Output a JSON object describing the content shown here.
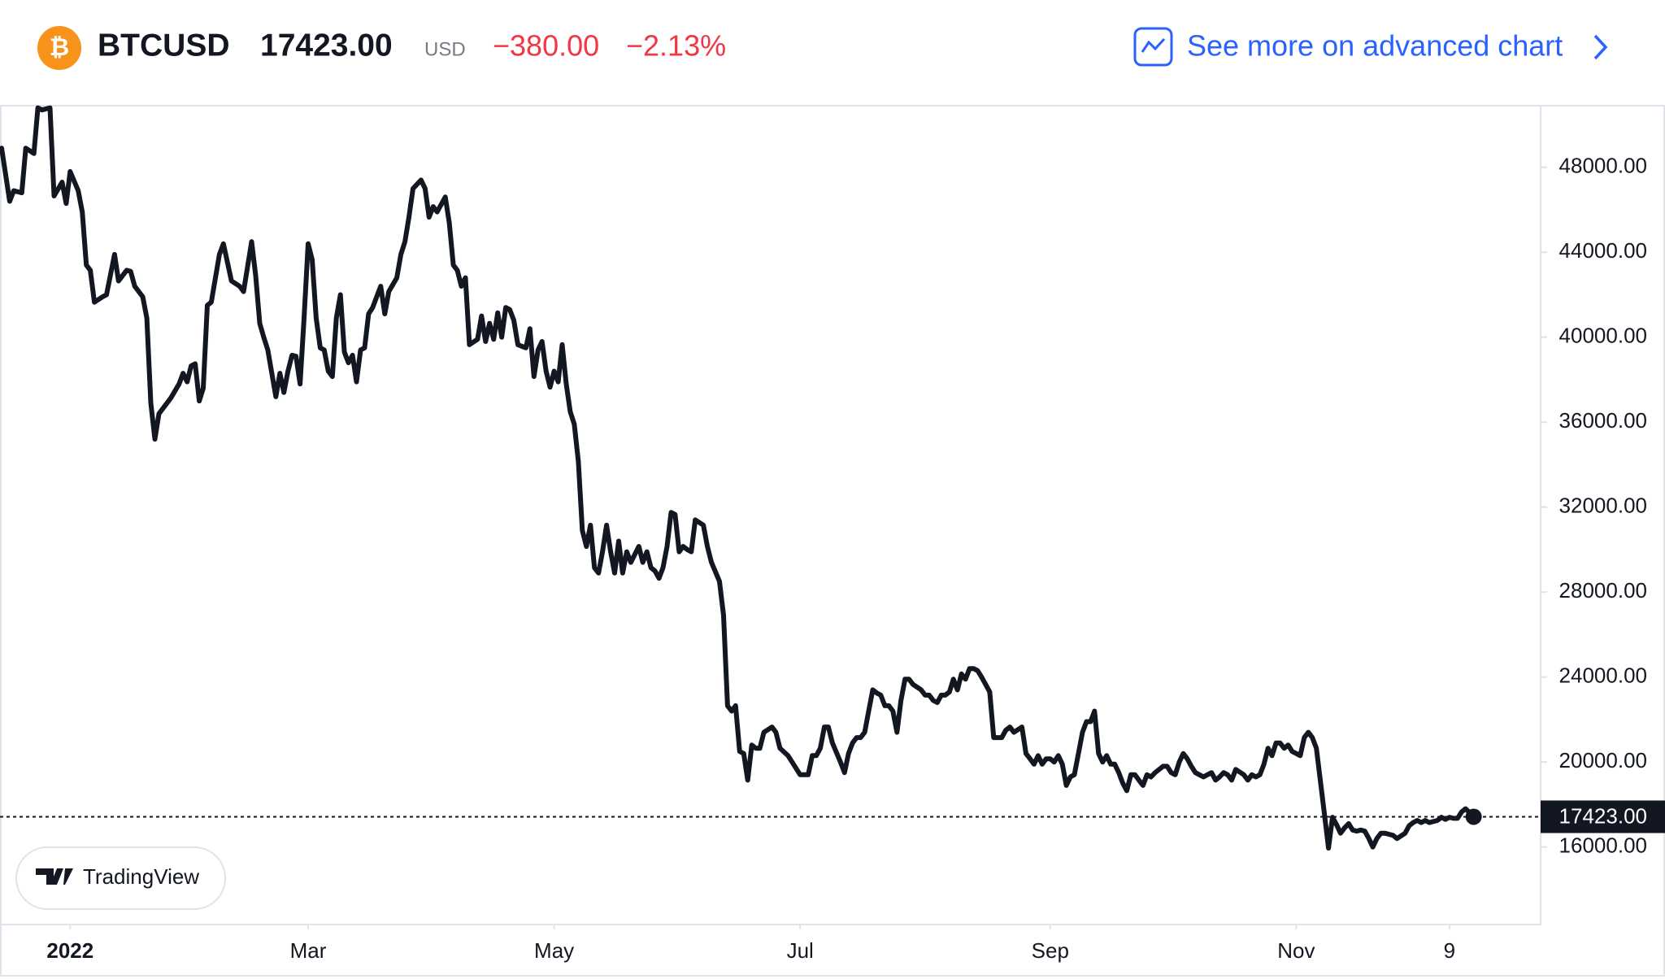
{
  "header": {
    "symbol": "BTCUSD",
    "price": "17423.00",
    "currency": "USD",
    "change": "−380.00",
    "change_percent": "−2.13%",
    "link": "See more on advanced chart",
    "watermark": "TradingView"
  },
  "chart_data": {
    "type": "line",
    "color": "#131722",
    "x": [
      -17,
      -15,
      -14,
      -12,
      -11,
      -9,
      -8,
      -7,
      -5,
      -4,
      -2,
      -1,
      0,
      2,
      3,
      4,
      5,
      6,
      8,
      9,
      11,
      12,
      14,
      15,
      16,
      18,
      19,
      20,
      21,
      22,
      24,
      25,
      27,
      28,
      29,
      30,
      31,
      32,
      33,
      34,
      35,
      37,
      38,
      40,
      42,
      43,
      45,
      46,
      47,
      48,
      49,
      51,
      52,
      53,
      54,
      55,
      56,
      57,
      58,
      59,
      60,
      61,
      62,
      63,
      64,
      65,
      66,
      67,
      68,
      69,
      70,
      71,
      72,
      73,
      74,
      75,
      76,
      77,
      78,
      79,
      81,
      82,
      83,
      84,
      85,
      87,
      88,
      89,
      90,
      91,
      93,
      94,
      95,
      96,
      97,
      98,
      99,
      101,
      102,
      103,
      104,
      105,
      106,
      107,
      108,
      109,
      110,
      111,
      113,
      114,
      115,
      116,
      117,
      118,
      119,
      120,
      121,
      122,
      123,
      124,
      125,
      126,
      127,
      128,
      129,
      130,
      131,
      132,
      133,
      134,
      135,
      136,
      137,
      138,
      139,
      141,
      142,
      143,
      144,
      145,
      146,
      147,
      148,
      149,
      150,
      151,
      152,
      153,
      154,
      155,
      157,
      158,
      159,
      161,
      162,
      163,
      164,
      165,
      166,
      167,
      168,
      169,
      170,
      171,
      172,
      174,
      175,
      176,
      178,
      179,
      181,
      182,
      183,
      184,
      185,
      186,
      187,
      188,
      189,
      191,
      192,
      193,
      194,
      195,
      196,
      197,
      198,
      199,
      200,
      201,
      202,
      203,
      204,
      205,
      206,
      207,
      208,
      209,
      211,
      212,
      213,
      214,
      215,
      216,
      217,
      218,
      219,
      220,
      221,
      222,
      223,
      224,
      225,
      226,
      227,
      228,
      229,
      231,
      232,
      233,
      234,
      236,
      237,
      238,
      239,
      240,
      241,
      242,
      243,
      244,
      245,
      246,
      247,
      248,
      249,
      251,
      252,
      253,
      254,
      255,
      256,
      257,
      258,
      259,
      260,
      261,
      262,
      263,
      264,
      265,
      266,
      267,
      268,
      269,
      271,
      272,
      273,
      274,
      275,
      276,
      277,
      278,
      279,
      280,
      281,
      282,
      283,
      284,
      285,
      286,
      287,
      288,
      289,
      291,
      292,
      293,
      294,
      295,
      296,
      297,
      298,
      299,
      300,
      301,
      302,
      303,
      304,
      305,
      306,
      307,
      308,
      309,
      311,
      312,
      313,
      314,
      315,
      316,
      317,
      318,
      319,
      320,
      321,
      322,
      323,
      324,
      325,
      326,
      327,
      328,
      329,
      331,
      332,
      333,
      334,
      335,
      336,
      337,
      338,
      339,
      340,
      341,
      342,
      343,
      344,
      345,
      346,
      348
    ],
    "values": [
      48900,
      46400,
      46900,
      46800,
      48900,
      48650,
      50800,
      50700,
      50800,
      46650,
      47300,
      46300,
      47800,
      46900,
      45900,
      43400,
      43150,
      41650,
      41900,
      42000,
      43900,
      42650,
      43150,
      43100,
      42400,
      41900,
      40900,
      36900,
      35200,
      36400,
      36900,
      37150,
      37800,
      38300,
      37900,
      38650,
      38750,
      37000,
      37600,
      41500,
      41650,
      43900,
      44400,
      42650,
      42400,
      42150,
      44500,
      42900,
      40650,
      40000,
      39400,
      37200,
      38300,
      37400,
      38400,
      39150,
      39100,
      37800,
      40900,
      44400,
      43650,
      40900,
      39500,
      39400,
      38400,
      38150,
      40900,
      42000,
      39300,
      38800,
      39150,
      37900,
      39400,
      39500,
      41100,
      41400,
      41900,
      42400,
      41100,
      42150,
      42800,
      43900,
      44500,
      45650,
      47000,
      47400,
      47000,
      45650,
      46150,
      45900,
      46600,
      45400,
      43400,
      43150,
      42400,
      42800,
      39650,
      39900,
      41000,
      39800,
      40650,
      39900,
      41150,
      40000,
      41400,
      41300,
      40800,
      39650,
      39500,
      40400,
      38150,
      39400,
      39800,
      38400,
      37650,
      38400,
      37900,
      39650,
      37800,
      36500,
      35900,
      34150,
      30900,
      30150,
      31150,
      29150,
      28900,
      29900,
      31150,
      29900,
      28900,
      30400,
      28900,
      29900,
      29400,
      30150,
      29400,
      29900,
      29150,
      29000,
      28650,
      29150,
      30150,
      31750,
      31650,
      29900,
      30150,
      30000,
      29900,
      31400,
      31150,
      30150,
      29400,
      28500,
      26900,
      22650,
      22400,
      22650,
      20500,
      20400,
      19150,
      20800,
      20650,
      20650,
      21400,
      21650,
      21400,
      20650,
      20300,
      20000,
      19400,
      19400,
      19400,
      20300,
      20300,
      20650,
      21650,
      21650,
      20900,
      20000,
      19500,
      20400,
      20900,
      21150,
      21150,
      21400,
      22400,
      23400,
      23250,
      23150,
      22650,
      22650,
      22400,
      21400,
      22900,
      23900,
      23900,
      23650,
      23400,
      23150,
      23150,
      22900,
      22800,
      23150,
      23150,
      23300,
      23900,
      23400,
      24150,
      23900,
      24400,
      24400,
      24300,
      24000,
      23650,
      23300,
      21150,
      21150,
      21500,
      21650,
      21400,
      21650,
      20400,
      20150,
      19900,
      20300,
      19900,
      20150,
      20150,
      20000,
      20300,
      19900,
      18900,
      19300,
      19400,
      21400,
      21900,
      21900,
      22400,
      20400,
      20000,
      20300,
      19900,
      19900,
      19500,
      19000,
      18650,
      19400,
      19400,
      19150,
      18900,
      19400,
      19300,
      19500,
      19800,
      19800,
      19500,
      19400,
      20000,
      20400,
      20150,
      19800,
      19500,
      19400,
      19300,
      19400,
      19500,
      19150,
      19300,
      19500,
      19400,
      19150,
      19650,
      19400,
      19150,
      19400,
      19300,
      19400,
      19900,
      20650,
      20300,
      20900,
      20900,
      20650,
      20800,
      20500,
      20400,
      20300,
      21150,
      21400,
      21150,
      20650,
      17550,
      15950,
      17400,
      17050,
      16650,
      16900,
      17100,
      16800,
      16750,
      16800,
      16750,
      16400,
      16000,
      16400,
      16650,
      16650,
      16600,
      16550,
      16400,
      16650,
      17000,
      17150,
      17250,
      17150,
      17250,
      17150,
      17200,
      17250,
      17400,
      17300,
      17400,
      17350,
      17350,
      17650,
      17800,
      17423
    ],
    "xlim": [
      -17.4,
      364.6
    ],
    "ylim": [
      12350,
      50900
    ],
    "xticks": [
      {
        "value": 0,
        "label": "2022"
      },
      {
        "value": 59,
        "label": "Mar"
      },
      {
        "value": 120,
        "label": "May"
      },
      {
        "value": 181,
        "label": "Jul"
      },
      {
        "value": 243,
        "label": "Sep"
      },
      {
        "value": 304,
        "label": "Nov"
      },
      {
        "value": 342,
        "label": "9"
      }
    ],
    "yticks": [
      {
        "value": 16000,
        "label": "16000.00"
      },
      {
        "value": 20000,
        "label": "20000.00"
      },
      {
        "value": 24000,
        "label": "24000.00"
      },
      {
        "value": 28000,
        "label": "28000.00"
      },
      {
        "value": 32000,
        "label": "32000.00"
      },
      {
        "value": 36000,
        "label": "36000.00"
      },
      {
        "value": 40000,
        "label": "40000.00"
      },
      {
        "value": 44000,
        "label": "44000.00"
      },
      {
        "value": 48000,
        "label": "48000.00"
      }
    ],
    "last_price": {
      "value": 17423,
      "label": "17423.00"
    }
  }
}
